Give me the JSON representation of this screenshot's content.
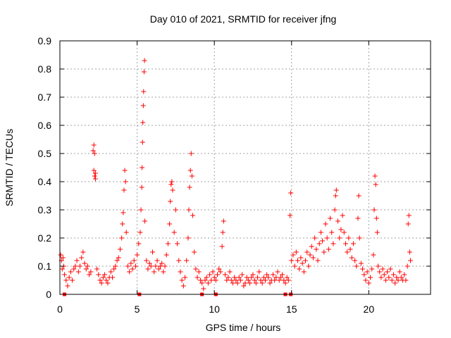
{
  "chart_data": {
    "type": "scatter",
    "title": "Day 010 of 2021, SRMTID for receiver jfng",
    "xlabel": "GPS time / hours",
    "ylabel": "SRMTID / TECUs",
    "xlim": [
      0,
      24
    ],
    "ylim": [
      0,
      0.9
    ],
    "xticks": [
      0,
      5,
      10,
      15,
      20
    ],
    "xtick_labels": [
      "0",
      "5",
      "10",
      "15",
      "20"
    ],
    "yticks": [
      0,
      0.1,
      0.2,
      0.3,
      0.4,
      0.5,
      0.6,
      0.7,
      0.8,
      0.9
    ],
    "ytick_labels": [
      "0",
      "0.1",
      "0.2",
      "0.3",
      "0.4",
      "0.5",
      "0.6",
      "0.7",
      "0.8",
      "0.9"
    ],
    "grid": true,
    "marker": "+",
    "color": "#ff0000",
    "series": [
      {
        "name": "SRMTID",
        "points": [
          [
            0.05,
            0.14
          ],
          [
            0.1,
            0.12
          ],
          [
            0.15,
            0.09
          ],
          [
            0.2,
            0.13
          ],
          [
            0.25,
            0.1
          ],
          [
            0.3,
            0.07
          ],
          [
            0.4,
            0.05
          ],
          [
            0.5,
            0.03
          ],
          [
            0.6,
            0.06
          ],
          [
            0.7,
            0.08
          ],
          [
            0.8,
            0.05
          ],
          [
            0.9,
            0.09
          ],
          [
            1.0,
            0.1
          ],
          [
            1.1,
            0.12
          ],
          [
            1.2,
            0.08
          ],
          [
            1.3,
            0.1
          ],
          [
            1.4,
            0.13
          ],
          [
            1.5,
            0.15
          ],
          [
            1.6,
            0.11
          ],
          [
            1.7,
            0.09
          ],
          [
            1.8,
            0.1
          ],
          [
            1.9,
            0.07
          ],
          [
            2.0,
            0.08
          ],
          [
            2.15,
            0.51
          ],
          [
            2.2,
            0.53
          ],
          [
            2.25,
            0.5
          ],
          [
            2.2,
            0.44
          ],
          [
            2.25,
            0.42
          ],
          [
            2.3,
            0.41
          ],
          [
            2.3,
            0.43
          ],
          [
            2.4,
            0.09
          ],
          [
            2.5,
            0.07
          ],
          [
            2.6,
            0.05
          ],
          [
            2.7,
            0.04
          ],
          [
            2.8,
            0.06
          ],
          [
            2.9,
            0.07
          ],
          [
            3.0,
            0.05
          ],
          [
            3.1,
            0.04
          ],
          [
            3.2,
            0.06
          ],
          [
            3.3,
            0.08
          ],
          [
            3.4,
            0.06
          ],
          [
            3.5,
            0.09
          ],
          [
            3.6,
            0.1
          ],
          [
            3.7,
            0.12
          ],
          [
            3.8,
            0.13
          ],
          [
            3.9,
            0.16
          ],
          [
            4.0,
            0.2
          ],
          [
            4.05,
            0.25
          ],
          [
            4.1,
            0.29
          ],
          [
            4.15,
            0.37
          ],
          [
            4.2,
            0.44
          ],
          [
            4.25,
            0.4
          ],
          [
            4.3,
            0.22
          ],
          [
            4.4,
            0.1
          ],
          [
            4.5,
            0.08
          ],
          [
            4.6,
            0.11
          ],
          [
            4.7,
            0.09
          ],
          [
            4.8,
            0.12
          ],
          [
            4.9,
            0.1
          ],
          [
            5.0,
            0.14
          ],
          [
            5.1,
            0.18
          ],
          [
            5.2,
            0.22
          ],
          [
            5.25,
            0.3
          ],
          [
            5.3,
            0.38
          ],
          [
            5.32,
            0.45
          ],
          [
            5.35,
            0.54
          ],
          [
            5.37,
            0.61
          ],
          [
            5.4,
            0.67
          ],
          [
            5.42,
            0.72
          ],
          [
            5.45,
            0.79
          ],
          [
            5.48,
            0.83
          ],
          [
            5.5,
            0.26
          ],
          [
            5.6,
            0.12
          ],
          [
            5.7,
            0.09
          ],
          [
            5.8,
            0.11
          ],
          [
            5.9,
            0.1
          ],
          [
            6.0,
            0.15
          ],
          [
            6.1,
            0.08
          ],
          [
            6.2,
            0.1
          ],
          [
            6.3,
            0.12
          ],
          [
            6.4,
            0.09
          ],
          [
            6.5,
            0.1
          ],
          [
            6.6,
            0.11
          ],
          [
            6.7,
            0.08
          ],
          [
            6.8,
            0.1
          ],
          [
            6.9,
            0.14
          ],
          [
            7.0,
            0.18
          ],
          [
            7.1,
            0.25
          ],
          [
            7.15,
            0.33
          ],
          [
            7.2,
            0.39
          ],
          [
            7.25,
            0.4
          ],
          [
            7.3,
            0.37
          ],
          [
            7.4,
            0.22
          ],
          [
            7.5,
            0.3
          ],
          [
            7.6,
            0.18
          ],
          [
            7.7,
            0.12
          ],
          [
            7.8,
            0.08
          ],
          [
            7.9,
            0.05
          ],
          [
            8.0,
            0.03
          ],
          [
            8.1,
            0.06
          ],
          [
            8.2,
            0.12
          ],
          [
            8.3,
            0.2
          ],
          [
            8.35,
            0.3
          ],
          [
            8.4,
            0.38
          ],
          [
            8.45,
            0.44
          ],
          [
            8.5,
            0.5
          ],
          [
            8.55,
            0.42
          ],
          [
            8.6,
            0.28
          ],
          [
            8.7,
            0.15
          ],
          [
            8.8,
            0.09
          ],
          [
            8.9,
            0.06
          ],
          [
            9.0,
            0.08
          ],
          [
            9.1,
            0.05
          ],
          [
            9.2,
            0.04
          ],
          [
            9.3,
            0.02
          ],
          [
            9.4,
            0.05
          ],
          [
            9.5,
            0.06
          ],
          [
            9.6,
            0.04
          ],
          [
            9.7,
            0.07
          ],
          [
            9.8,
            0.05
          ],
          [
            9.9,
            0.08
          ],
          [
            10.0,
            0.06
          ],
          [
            10.1,
            0.05
          ],
          [
            10.2,
            0.07
          ],
          [
            10.3,
            0.09
          ],
          [
            10.4,
            0.08
          ],
          [
            10.5,
            0.17
          ],
          [
            10.55,
            0.22
          ],
          [
            10.6,
            0.26
          ],
          [
            10.7,
            0.07
          ],
          [
            10.8,
            0.05
          ],
          [
            10.9,
            0.06
          ],
          [
            11.0,
            0.08
          ],
          [
            11.1,
            0.05
          ],
          [
            11.2,
            0.04
          ],
          [
            11.3,
            0.06
          ],
          [
            11.4,
            0.05
          ],
          [
            11.5,
            0.04
          ],
          [
            11.6,
            0.06
          ],
          [
            11.7,
            0.05
          ],
          [
            11.8,
            0.07
          ],
          [
            11.9,
            0.03
          ],
          [
            12.0,
            0.04
          ],
          [
            12.1,
            0.06
          ],
          [
            12.2,
            0.05
          ],
          [
            12.3,
            0.04
          ],
          [
            12.4,
            0.06
          ],
          [
            12.5,
            0.07
          ],
          [
            12.6,
            0.05
          ],
          [
            12.7,
            0.04
          ],
          [
            12.8,
            0.06
          ],
          [
            12.9,
            0.08
          ],
          [
            13.0,
            0.05
          ],
          [
            13.1,
            0.04
          ],
          [
            13.2,
            0.06
          ],
          [
            13.3,
            0.05
          ],
          [
            13.4,
            0.07
          ],
          [
            13.5,
            0.06
          ],
          [
            13.6,
            0.04
          ],
          [
            13.7,
            0.05
          ],
          [
            13.8,
            0.07
          ],
          [
            13.9,
            0.05
          ],
          [
            14.0,
            0.06
          ],
          [
            14.1,
            0.08
          ],
          [
            14.2,
            0.05
          ],
          [
            14.3,
            0.06
          ],
          [
            14.4,
            0.07
          ],
          [
            14.5,
            0.05
          ],
          [
            14.6,
            0.04
          ],
          [
            14.7,
            0.06
          ],
          [
            14.8,
            0.05
          ],
          [
            14.9,
            0.28
          ],
          [
            14.95,
            0.36
          ],
          [
            15.0,
            0.12
          ],
          [
            15.1,
            0.14
          ],
          [
            15.2,
            0.1
          ],
          [
            15.3,
            0.15
          ],
          [
            15.4,
            0.12
          ],
          [
            15.5,
            0.09
          ],
          [
            15.6,
            0.13
          ],
          [
            15.7,
            0.11
          ],
          [
            15.8,
            0.08
          ],
          [
            15.9,
            0.12
          ],
          [
            16.0,
            0.15
          ],
          [
            16.1,
            0.1
          ],
          [
            16.2,
            0.14
          ],
          [
            16.3,
            0.17
          ],
          [
            16.4,
            0.13
          ],
          [
            16.5,
            0.2
          ],
          [
            16.6,
            0.16
          ],
          [
            16.7,
            0.12
          ],
          [
            16.8,
            0.18
          ],
          [
            16.9,
            0.22
          ],
          [
            17.0,
            0.19
          ],
          [
            17.1,
            0.15
          ],
          [
            17.2,
            0.25
          ],
          [
            17.3,
            0.2
          ],
          [
            17.4,
            0.16
          ],
          [
            17.5,
            0.27
          ],
          [
            17.6,
            0.22
          ],
          [
            17.7,
            0.18
          ],
          [
            17.8,
            0.3
          ],
          [
            17.85,
            0.35
          ],
          [
            17.9,
            0.37
          ],
          [
            18.0,
            0.26
          ],
          [
            18.1,
            0.2
          ],
          [
            18.2,
            0.23
          ],
          [
            18.3,
            0.28
          ],
          [
            18.4,
            0.22
          ],
          [
            18.5,
            0.18
          ],
          [
            18.6,
            0.15
          ],
          [
            18.7,
            0.2
          ],
          [
            18.8,
            0.16
          ],
          [
            18.9,
            0.13
          ],
          [
            19.0,
            0.18
          ],
          [
            19.1,
            0.12
          ],
          [
            19.2,
            0.1
          ],
          [
            19.3,
            0.27
          ],
          [
            19.35,
            0.35
          ],
          [
            19.4,
            0.2
          ],
          [
            19.5,
            0.11
          ],
          [
            19.6,
            0.09
          ],
          [
            19.7,
            0.07
          ],
          [
            19.8,
            0.05
          ],
          [
            19.9,
            0.08
          ],
          [
            20.0,
            0.04
          ],
          [
            20.1,
            0.06
          ],
          [
            20.2,
            0.09
          ],
          [
            20.3,
            0.14
          ],
          [
            20.35,
            0.3
          ],
          [
            20.4,
            0.42
          ],
          [
            20.45,
            0.39
          ],
          [
            20.5,
            0.27
          ],
          [
            20.55,
            0.22
          ],
          [
            20.6,
            0.1
          ],
          [
            20.7,
            0.08
          ],
          [
            20.8,
            0.06
          ],
          [
            20.9,
            0.09
          ],
          [
            21.0,
            0.07
          ],
          [
            21.1,
            0.05
          ],
          [
            21.2,
            0.08
          ],
          [
            21.3,
            0.06
          ],
          [
            21.4,
            0.09
          ],
          [
            21.5,
            0.05
          ],
          [
            21.6,
            0.07
          ],
          [
            21.7,
            0.04
          ],
          [
            21.8,
            0.06
          ],
          [
            21.9,
            0.05
          ],
          [
            22.0,
            0.08
          ],
          [
            22.1,
            0.06
          ],
          [
            22.2,
            0.05
          ],
          [
            22.3,
            0.07
          ],
          [
            22.4,
            0.05
          ],
          [
            22.5,
            0.1
          ],
          [
            22.55,
            0.25
          ],
          [
            22.6,
            0.28
          ],
          [
            22.65,
            0.15
          ],
          [
            22.7,
            0.12
          ]
        ]
      }
    ],
    "gap_markers_x": [
      0.3,
      5.15,
      9.2,
      10.1,
      14.6,
      14.95
    ]
  }
}
